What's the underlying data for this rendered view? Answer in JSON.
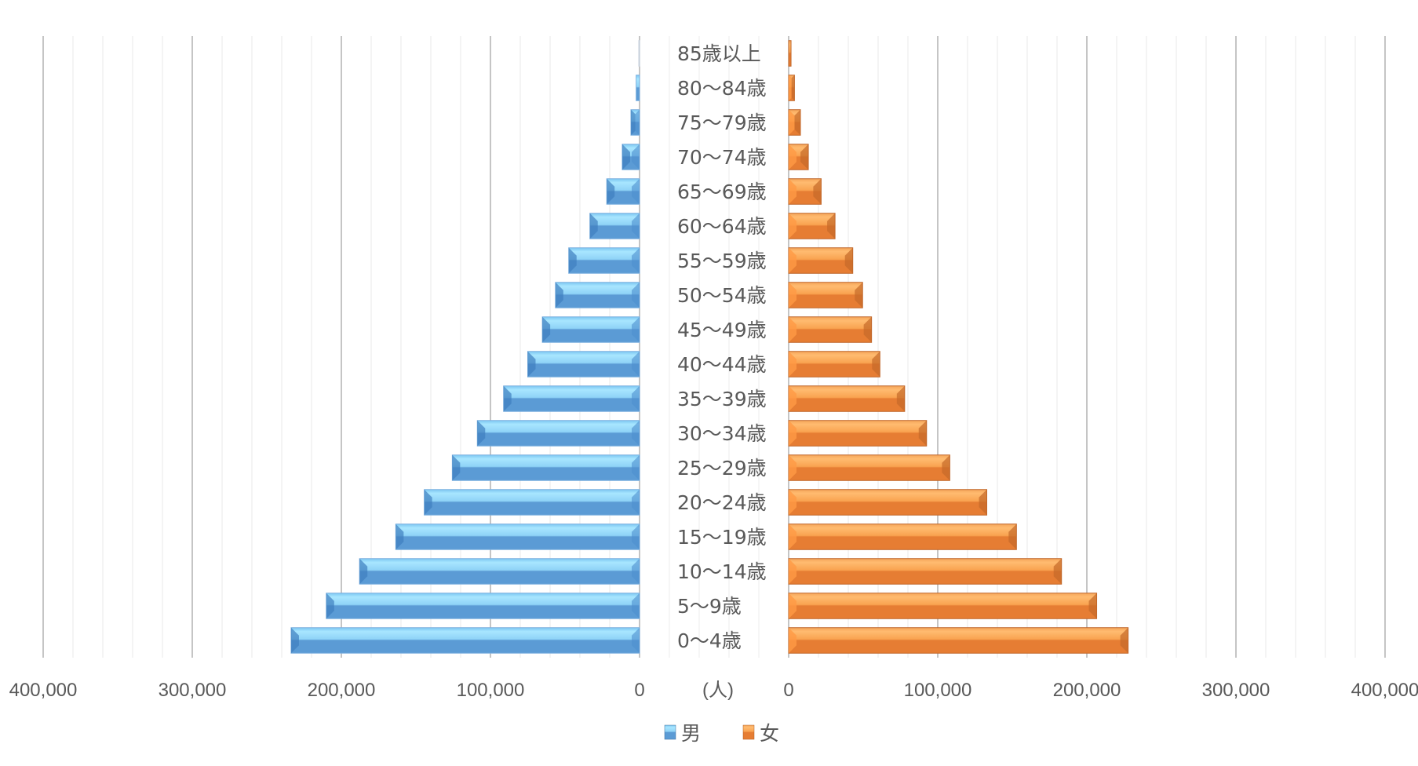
{
  "chart_data": {
    "type": "bar",
    "orientation": "horizontal",
    "subtype": "population-pyramid",
    "title": "",
    "unit_label": "(人)",
    "categories": [
      "85歳以上",
      "80〜84歳",
      "75〜79歳",
      "70〜74歳",
      "65〜69歳",
      "60〜64歳",
      "55〜59歳",
      "50〜54歳",
      "45〜49歳",
      "40〜44歳",
      "35〜39歳",
      "30〜34歳",
      "25〜29歳",
      "20〜24歳",
      "15〜19歳",
      "10〜14歳",
      "5〜9歳",
      "0〜4歳"
    ],
    "series": [
      {
        "name": "男",
        "side": "left",
        "color": "#5B9BD5",
        "highlight": "#9DDCFB",
        "values": [
          500,
          2300,
          5800,
          11600,
          22000,
          33300,
          47500,
          56400,
          65200,
          75000,
          91200,
          108800,
          125600,
          144400,
          163500,
          187800,
          210100,
          233700
        ]
      },
      {
        "name": "女",
        "side": "right",
        "color": "#ED7D31",
        "highlight": "#FFB266",
        "values": [
          1600,
          3900,
          7900,
          13200,
          21800,
          31100,
          43000,
          49600,
          55600,
          61200,
          77800,
          92500,
          108100,
          132900,
          152800,
          183000,
          206600,
          227700
        ]
      }
    ],
    "x_axis_left": {
      "ticks": [
        "400,000",
        "300,000",
        "200,000",
        "100,000",
        "0"
      ],
      "range": [
        400000,
        0
      ],
      "minor_step": 20000
    },
    "x_axis_right": {
      "ticks": [
        "0",
        "100,000",
        "200,000",
        "300,000",
        "400,000"
      ],
      "range": [
        0,
        400000
      ],
      "minor_step": 20000
    },
    "grid": true,
    "legend": {
      "position": "bottom",
      "entries": [
        {
          "label": "男",
          "color": "#5B9BD5"
        },
        {
          "label": "女",
          "color": "#ED7D31"
        }
      ]
    }
  }
}
